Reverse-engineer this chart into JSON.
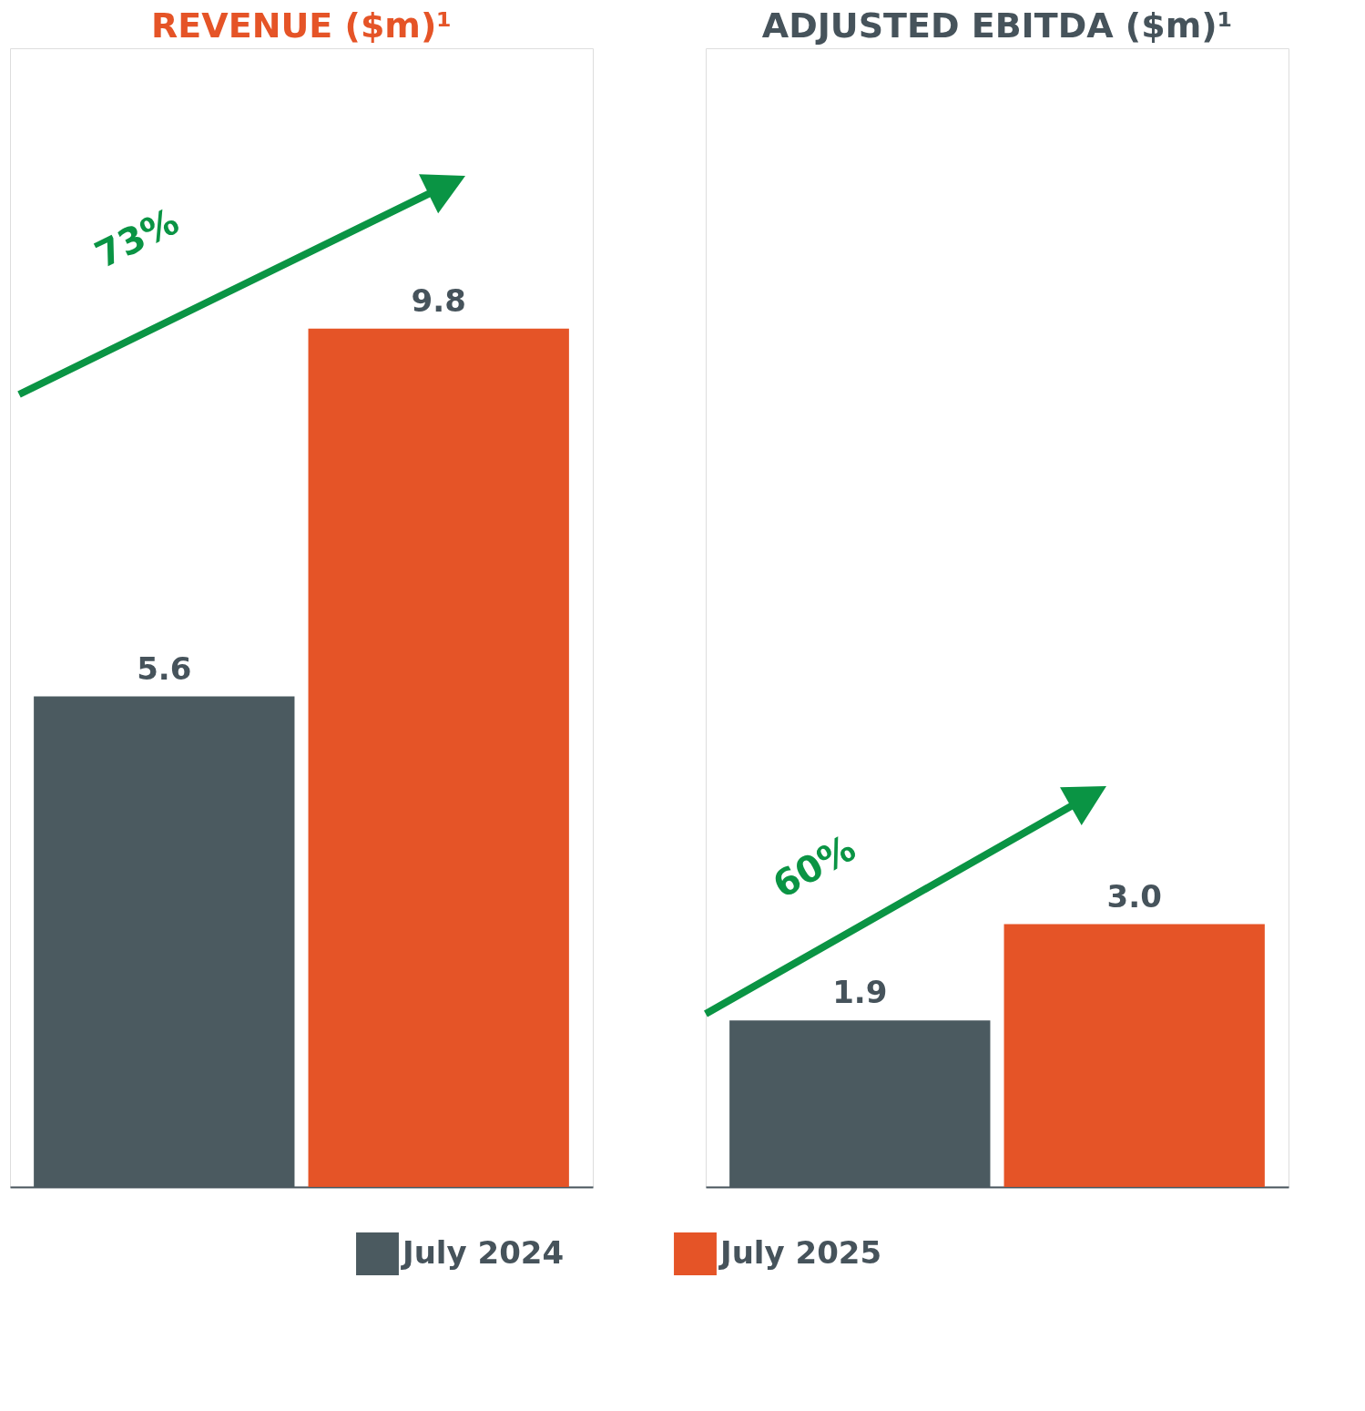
{
  "chart_data": [
    {
      "type": "bar",
      "title": "REVENUE ($m)¹",
      "categories": [
        null
      ],
      "ylim": [
        0,
        13
      ],
      "tick_labels": false,
      "legend": "bottom",
      "annotations": [
        "73%"
      ],
      "series": [
        {
          "name": "July 2024",
          "color": "#4b5a60",
          "values": [
            5.6
          ],
          "value_labels": [
            "5.6"
          ]
        },
        {
          "name": "July 2025",
          "color": "#e55427",
          "values": [
            9.8
          ],
          "value_labels": [
            "9.8"
          ]
        }
      ]
    },
    {
      "type": "bar",
      "title": "ADJUSTED EBITDA ($m)¹",
      "categories": [
        null
      ],
      "ylim": [
        0,
        13
      ],
      "tick_labels": false,
      "legend": "bottom",
      "annotations": [
        "60%"
      ],
      "series": [
        {
          "name": "July 2024",
          "color": "#4b5a60",
          "values": [
            1.9
          ],
          "value_labels": [
            "1.9"
          ]
        },
        {
          "name": "July 2025",
          "color": "#e55427",
          "values": [
            3.0
          ],
          "value_labels": [
            "3.0"
          ]
        }
      ]
    }
  ]
}
